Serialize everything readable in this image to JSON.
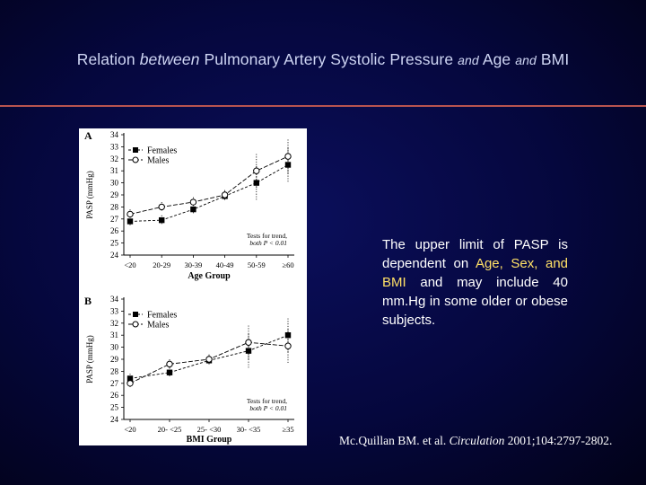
{
  "title": {
    "part1": "Relation ",
    "part2": "between",
    "part3": " Pulmonary Artery Systolic Pressure ",
    "part4": "and",
    "part5": " Age ",
    "part6": "and",
    "part7": " BMI"
  },
  "body_text": {
    "part1": "The upper limit of PASP is dependent on ",
    "part2": "Age, Sex, and BMI",
    "part3": " and may include 40 mm.Hg in some older or obese subjects."
  },
  "citation": {
    "authors": "Mc.Quillan BM. et al. ",
    "journal": "Circulation",
    "details": " 2001;104:2797-2802."
  },
  "colors": {
    "background": "#05073d",
    "title": "#cfd6f4",
    "rule": "#b8544f",
    "highlight": "#ffe066",
    "figure_background": "#ffffff"
  },
  "chart_data": [
    {
      "type": "line",
      "panel_label": "A",
      "ylabel": "PASP (mmHg)",
      "xlabel": "Age Group",
      "categories": [
        "<20",
        "20-29",
        "30-39",
        "40-49",
        "50-59",
        "≥60"
      ],
      "ylim": [
        24,
        34
      ],
      "yticks": [
        24,
        25,
        26,
        27,
        28,
        29,
        30,
        31,
        32,
        33,
        34
      ],
      "series": [
        {
          "name": "Females",
          "marker": "filled-square",
          "values": [
            26.8,
            26.9,
            27.8,
            28.9,
            30.0,
            31.5
          ]
        },
        {
          "name": "Males",
          "marker": "open-circle",
          "values": [
            27.4,
            28.0,
            28.4,
            29.0,
            31.0,
            32.2
          ]
        }
      ],
      "legend_position": "top-left",
      "annotation": {
        "line1": "Tests for trend,",
        "line2": "both P < 0.01"
      }
    },
    {
      "type": "line",
      "panel_label": "B",
      "ylabel": "PASP (mmHg)",
      "xlabel": "BMI Group",
      "categories": [
        "<20",
        "20- <25",
        "25- <30",
        "30- <35",
        "≥35"
      ],
      "ylim": [
        24,
        34
      ],
      "yticks": [
        24,
        25,
        26,
        27,
        28,
        29,
        30,
        31,
        32,
        33,
        34
      ],
      "series": [
        {
          "name": "Females",
          "marker": "filled-square",
          "values": [
            27.4,
            27.9,
            28.9,
            29.7,
            31.0
          ]
        },
        {
          "name": "Males",
          "marker": "open-circle",
          "values": [
            27.0,
            28.6,
            29.0,
            30.4,
            30.1
          ]
        }
      ],
      "legend_position": "top-left",
      "annotation": {
        "line1": "Tests for trend,",
        "line2": "both P < 0.01"
      }
    }
  ]
}
